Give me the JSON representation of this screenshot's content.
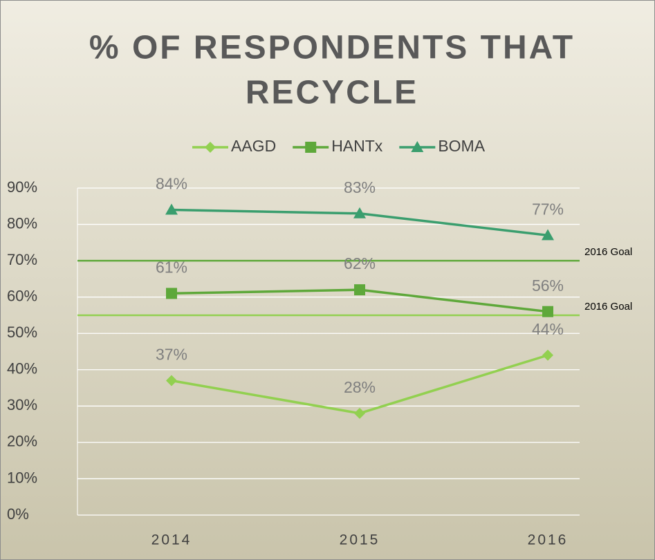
{
  "chart_data": {
    "type": "line",
    "title": [
      "% OF RESPONDENTS THAT",
      "RECYCLE"
    ],
    "categories": [
      "2014",
      "2015",
      "2016"
    ],
    "series": [
      {
        "name": "AAGD",
        "color": "#92d050",
        "marker": "diamond",
        "values": [
          37,
          28,
          44
        ],
        "value_labels": [
          "37%",
          "28%",
          "44%"
        ]
      },
      {
        "name": "HANTx",
        "color": "#5ea83a",
        "marker": "square",
        "values": [
          61,
          62,
          56
        ],
        "value_labels": [
          "61%",
          "62%",
          "56%"
        ]
      },
      {
        "name": "BOMA",
        "color": "#3a9e6e",
        "marker": "triangle",
        "values": [
          84,
          83,
          77
        ],
        "value_labels": [
          "84%",
          "83%",
          "77%"
        ]
      }
    ],
    "goals": [
      {
        "value": 70,
        "label": "2016 Goal",
        "color": "#5ea83a"
      },
      {
        "value": 55,
        "label": "2016 Goal",
        "color": "#92d050"
      }
    ],
    "ylim": [
      0,
      90
    ],
    "yticks": [
      {
        "value": 0,
        "label": "0%"
      },
      {
        "value": 10,
        "label": "10%"
      },
      {
        "value": 20,
        "label": "20%"
      },
      {
        "value": 30,
        "label": "30%"
      },
      {
        "value": 40,
        "label": "40%"
      },
      {
        "value": 50,
        "label": "50%"
      },
      {
        "value": 60,
        "label": "60%"
      },
      {
        "value": 70,
        "label": "70%"
      },
      {
        "value": 80,
        "label": "80%"
      },
      {
        "value": 90,
        "label": "90%"
      }
    ],
    "grid": true,
    "legend": "top"
  }
}
